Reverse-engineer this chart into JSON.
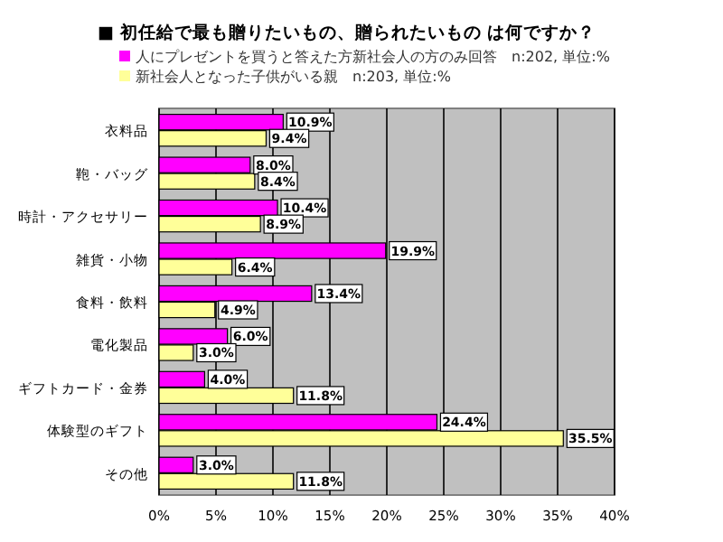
{
  "chart_data": {
    "type": "bar",
    "orientation": "horizontal",
    "title": "■ 初任給で最も贈りたいもの、贈られたいもの は何ですか？",
    "categories": [
      "衣料品",
      "鞄・バッグ",
      "時計・アクセサリー",
      "雑貨・小物",
      "食料・飲料",
      "電化製品",
      "ギフトカード・金券",
      "体験型のギフト",
      "その他"
    ],
    "series": [
      {
        "name": "人にプレゼントを買うと答えた方新社会人の方のみ回答　n:202, 単位:%",
        "color": "#ff00ff",
        "values": [
          10.9,
          8.0,
          10.4,
          19.9,
          13.4,
          6.0,
          4.0,
          24.4,
          3.0
        ]
      },
      {
        "name": "新社会人となった子供がいる親　n:203, 単位:%",
        "color": "#ffff99",
        "values": [
          9.4,
          8.4,
          8.9,
          6.4,
          4.9,
          3.0,
          11.8,
          35.5,
          11.8
        ]
      }
    ],
    "xlim": [
      0,
      40
    ],
    "xticks": [
      {
        "value": 0,
        "label": "0%"
      },
      {
        "value": 5,
        "label": "5%"
      },
      {
        "value": 10,
        "label": "10%"
      },
      {
        "value": 15,
        "label": "15%"
      },
      {
        "value": 20,
        "label": "20%"
      },
      {
        "value": 25,
        "label": "25%"
      },
      {
        "value": 30,
        "label": "30%"
      },
      {
        "value": 35,
        "label": "35%"
      },
      {
        "value": 40,
        "label": "40%"
      }
    ],
    "value_labels": [
      [
        "10.9%",
        "8.0%",
        "10.4%",
        "19.9%",
        "13.4%",
        "6.0%",
        "4.0%",
        "24.4%",
        "3.0%"
      ],
      [
        "9.4%",
        "8.4%",
        "8.9%",
        "6.4%",
        "4.9%",
        "3.0%",
        "11.8%",
        "35.5%",
        "11.8%"
      ]
    ],
    "grid": "x",
    "legend": "top"
  }
}
